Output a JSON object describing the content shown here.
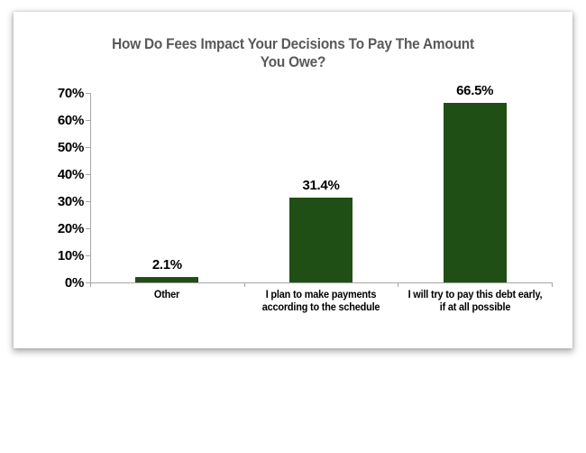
{
  "page": {
    "background": "#FFFFFF"
  },
  "chart_data": {
    "type": "bar",
    "title": "How Do Fees Impact Your Decisions To Pay The Amount\nYou Owe?",
    "categories": [
      "Other",
      "I plan to make payments\naccording to the schedule",
      "I will try to pay this debt early,\nif at all possible"
    ],
    "values": [
      2.1,
      31.4,
      66.5
    ],
    "value_labels": [
      "2.1%",
      "31.4%",
      "66.5%"
    ],
    "xlabel": "",
    "ylabel": "",
    "ylim": [
      0,
      70
    ],
    "y_tick_step": 10,
    "y_tick_labels": [
      "0%",
      "10%",
      "20%",
      "30%",
      "40%",
      "50%",
      "60%",
      "70%"
    ],
    "grid": false,
    "legend": false,
    "colors": {
      "bar": "#1F4F14",
      "axis": "#A6A6A6",
      "title": "#595959",
      "labels": "#000000",
      "card_background": "#FFFFFF"
    }
  }
}
